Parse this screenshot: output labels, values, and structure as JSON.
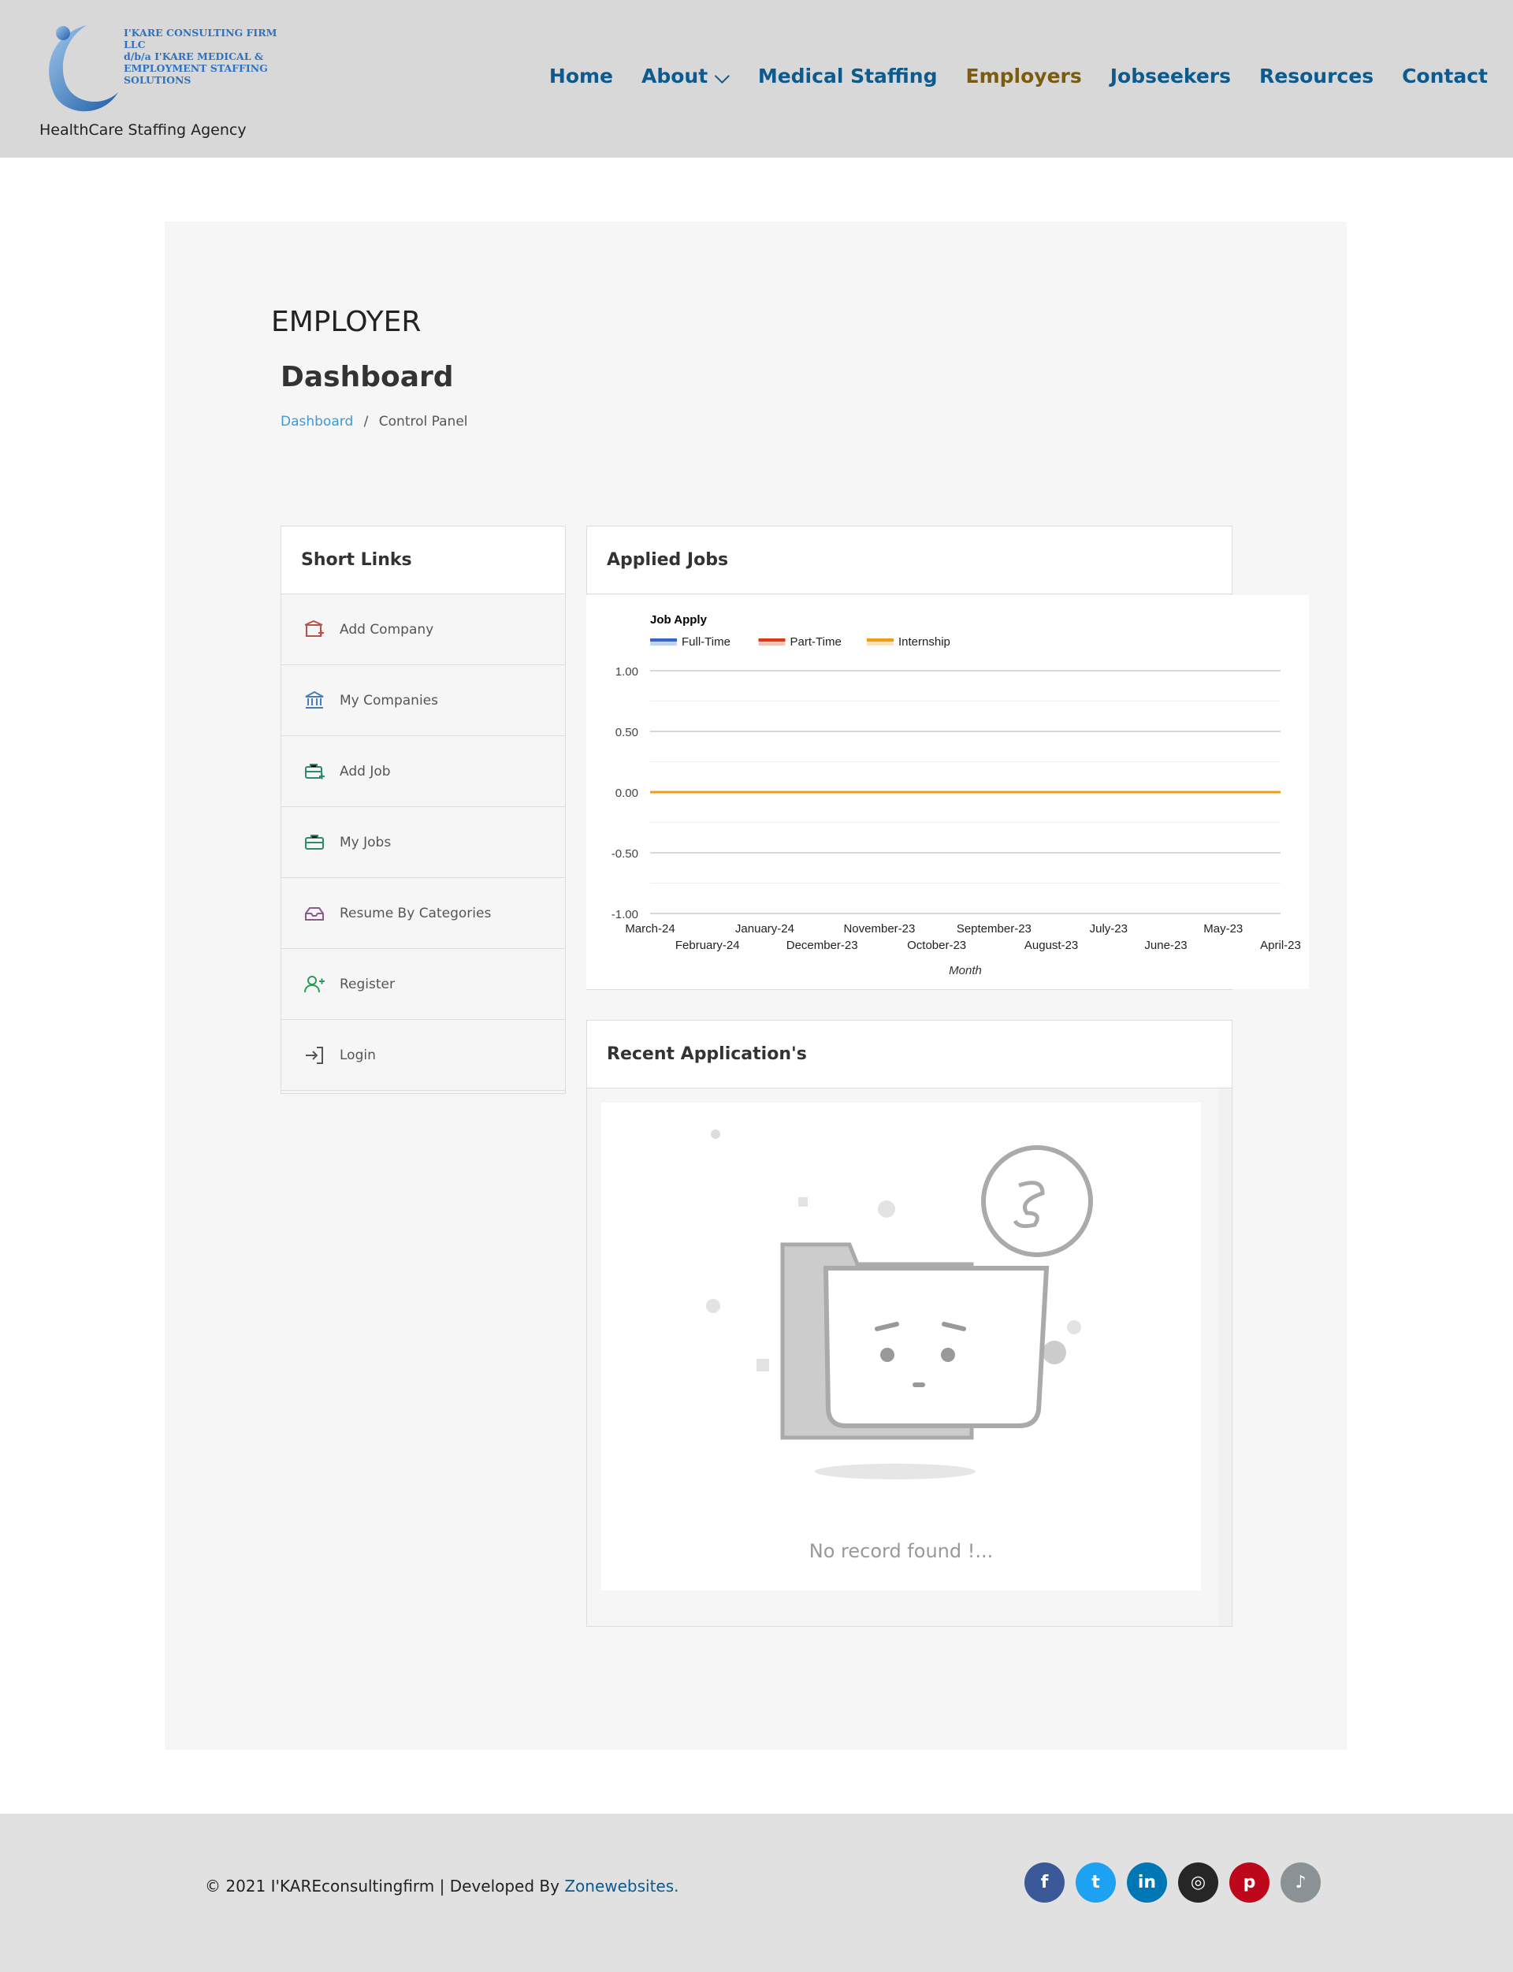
{
  "header": {
    "logo_text": [
      "I'KARE CONSULTING FIRM LLC",
      "d/b/a I'KARE MEDICAL &",
      "EMPLOYMENT STAFFING",
      "SOLUTIONS"
    ],
    "tagline": "HealthCare Staffing Agency",
    "nav": [
      {
        "label": "Home"
      },
      {
        "label": "About ⌵"
      },
      {
        "label": "Medical Staffing"
      },
      {
        "label": "Employers",
        "active": true
      },
      {
        "label": "Jobseekers"
      },
      {
        "label": "Resources"
      },
      {
        "label": "Contact"
      }
    ]
  },
  "page": {
    "section": "EMPLOYER",
    "title": "Dashboard",
    "breadcrumb": {
      "link": "Dashboard",
      "sep": "/",
      "current": "Control Panel"
    }
  },
  "short_links": {
    "title": "Short Links",
    "items": [
      {
        "label": "Add Company",
        "icon": "building-add-icon"
      },
      {
        "label": "My Companies",
        "icon": "bank-icon"
      },
      {
        "label": "Add Job",
        "icon": "briefcase-add-icon"
      },
      {
        "label": "My Jobs",
        "icon": "briefcase-icon"
      },
      {
        "label": "Resume By Categories",
        "icon": "inbox-icon"
      },
      {
        "label": "Register",
        "icon": "user-plus-icon"
      },
      {
        "label": "Login",
        "icon": "login-icon"
      }
    ]
  },
  "applied_jobs": {
    "title": "Applied Jobs"
  },
  "chart_data": {
    "type": "line",
    "title": "Job Apply",
    "xlabel": "Month",
    "ylabel": "",
    "categories": [
      "March-24",
      "February-24",
      "January-24",
      "December-23",
      "November-23",
      "October-23",
      "September-23",
      "August-23",
      "July-23",
      "June-23",
      "May-23",
      "April-23"
    ],
    "yticks": [
      "1.00",
      "0.50",
      "0.00",
      "-0.50",
      "-1.00"
    ],
    "ylim": [
      -1,
      1
    ],
    "legend": "top-left",
    "grid": true,
    "series": [
      {
        "name": "Full-Time",
        "color": "#3366cc",
        "values": [
          0,
          0,
          0,
          0,
          0,
          0,
          0,
          0,
          0,
          0,
          0,
          0
        ]
      },
      {
        "name": "Part-Time",
        "color": "#dc3912",
        "values": [
          0,
          0,
          0,
          0,
          0,
          0,
          0,
          0,
          0,
          0,
          0,
          0
        ]
      },
      {
        "name": "Internship",
        "color": "#f39c12",
        "values": [
          0,
          0,
          0,
          0,
          0,
          0,
          0,
          0,
          0,
          0,
          0,
          0
        ]
      }
    ]
  },
  "recent": {
    "title": "Recent Application's",
    "empty": "No record found !..."
  },
  "footer": {
    "copyright": "© 2021 I'KAREconsultingfirm  | Developed By ",
    "dev_link": "Zonewebsites.",
    "social": [
      {
        "name": "facebook",
        "glyph": "f",
        "color": "#3b5998"
      },
      {
        "name": "twitter",
        "glyph": "t",
        "color": "#1da1f2"
      },
      {
        "name": "linkedin",
        "glyph": "in",
        "color": "#0077b5"
      },
      {
        "name": "instagram",
        "glyph": "◎",
        "color": "#262626"
      },
      {
        "name": "pinterest",
        "glyph": "p",
        "color": "#bd081c"
      },
      {
        "name": "tiktok",
        "glyph": "♪",
        "color": "#8a9296"
      }
    ]
  }
}
